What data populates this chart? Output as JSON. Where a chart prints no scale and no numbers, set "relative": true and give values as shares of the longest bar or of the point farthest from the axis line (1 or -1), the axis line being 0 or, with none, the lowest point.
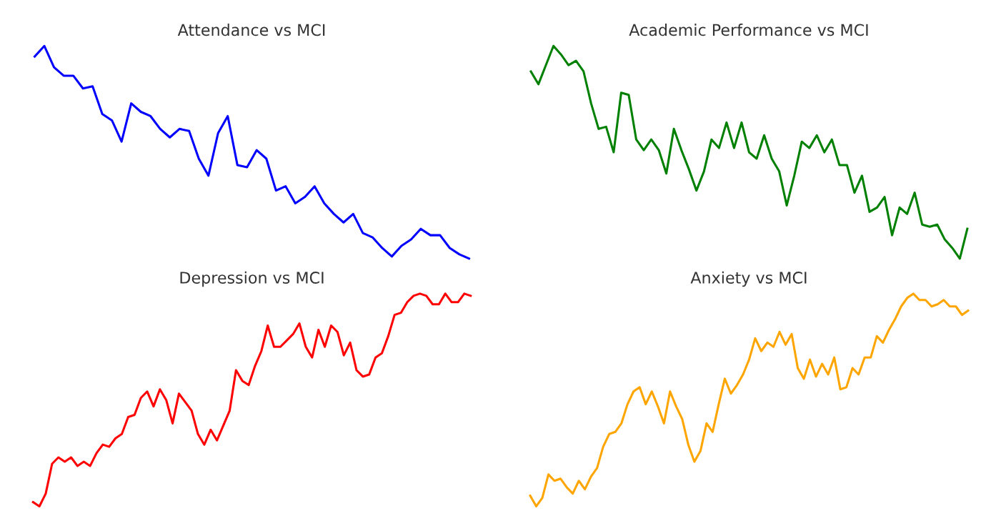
{
  "chart_data": [
    {
      "type": "line",
      "title": "Attendance vs MCI",
      "relative": true,
      "categories": [
        null,
        null,
        null,
        null,
        null,
        null,
        null,
        null,
        null,
        null,
        null,
        null,
        null,
        null,
        null,
        null,
        null,
        null,
        null,
        null,
        null,
        null,
        null,
        null,
        null,
        null,
        null,
        null,
        null,
        null,
        null,
        null,
        null,
        null,
        null,
        null,
        null,
        null,
        null,
        null,
        null,
        null,
        null,
        null,
        null,
        null
      ],
      "series": [
        {
          "color": "#0000ff",
          "values": [
            0.95,
            1.0,
            0.9,
            0.86,
            0.86,
            0.8,
            0.81,
            0.68,
            0.65,
            0.55,
            0.73,
            0.69,
            0.67,
            0.61,
            0.57,
            0.61,
            0.6,
            0.47,
            0.39,
            0.59,
            0.67,
            0.44,
            0.43,
            0.51,
            0.47,
            0.32,
            0.34,
            0.26,
            0.29,
            0.34,
            0.26,
            0.21,
            0.17,
            0.21,
            0.12,
            0.1,
            0.05,
            0.01,
            0.06,
            0.09,
            0.14,
            0.11,
            0.11,
            0.05,
            0.02,
            0.0
          ]
        }
      ]
    },
    {
      "type": "line",
      "title": "Academic Performance vs MCI",
      "relative": true,
      "categories": [
        null,
        null,
        null,
        null,
        null,
        null,
        null,
        null,
        null,
        null,
        null,
        null,
        null,
        null,
        null,
        null,
        null,
        null,
        null,
        null,
        null,
        null,
        null,
        null,
        null,
        null,
        null,
        null,
        null,
        null,
        null,
        null,
        null,
        null,
        null,
        null,
        null,
        null,
        null,
        null,
        null,
        null,
        null,
        null,
        null,
        null,
        null,
        null,
        null,
        null,
        null,
        null,
        null,
        null,
        null,
        null,
        null,
        null,
        null
      ],
      "series": [
        {
          "color": "#008000",
          "values": [
            0.88,
            0.82,
            0.91,
            1.0,
            0.96,
            0.91,
            0.93,
            0.88,
            0.73,
            0.61,
            0.62,
            0.5,
            0.78,
            0.77,
            0.56,
            0.51,
            0.56,
            0.51,
            0.4,
            0.61,
            0.51,
            0.42,
            0.32,
            0.41,
            0.56,
            0.52,
            0.64,
            0.52,
            0.64,
            0.5,
            0.47,
            0.58,
            0.47,
            0.41,
            0.25,
            0.39,
            0.55,
            0.52,
            0.58,
            0.5,
            0.56,
            0.44,
            0.44,
            0.31,
            0.39,
            0.22,
            0.24,
            0.29,
            0.11,
            0.24,
            0.21,
            0.31,
            0.16,
            0.15,
            0.16,
            0.09,
            0.05,
            0.0,
            0.14
          ]
        }
      ]
    },
    {
      "type": "line",
      "title": "Depression vs MCI",
      "relative": true,
      "categories": [
        null,
        null,
        null,
        null,
        null,
        null,
        null,
        null,
        null,
        null,
        null,
        null,
        null,
        null,
        null,
        null,
        null,
        null,
        null,
        null,
        null,
        null,
        null,
        null,
        null,
        null,
        null,
        null,
        null,
        null,
        null,
        null,
        null,
        null,
        null,
        null,
        null,
        null,
        null,
        null,
        null,
        null,
        null,
        null,
        null,
        null,
        null,
        null,
        null,
        null,
        null,
        null,
        null,
        null,
        null,
        null,
        null,
        null,
        null,
        null,
        null,
        null,
        null,
        null,
        null,
        null,
        null,
        null,
        null,
        null
      ],
      "series": [
        {
          "color": "#ff0000",
          "values": [
            0.02,
            0.0,
            0.06,
            0.2,
            0.23,
            0.21,
            0.23,
            0.19,
            0.21,
            0.19,
            0.25,
            0.29,
            0.28,
            0.32,
            0.34,
            0.42,
            0.43,
            0.51,
            0.54,
            0.47,
            0.55,
            0.5,
            0.39,
            0.53,
            0.49,
            0.45,
            0.34,
            0.29,
            0.36,
            0.31,
            0.38,
            0.45,
            0.64,
            0.59,
            0.57,
            0.66,
            0.73,
            0.85,
            0.75,
            0.75,
            0.78,
            0.81,
            0.86,
            0.75,
            0.7,
            0.83,
            0.75,
            0.85,
            0.82,
            0.71,
            0.77,
            0.64,
            0.61,
            0.62,
            0.7,
            0.72,
            0.8,
            0.9,
            0.91,
            0.96,
            0.99,
            1.0,
            0.99,
            0.95,
            0.95,
            1.0,
            0.96,
            0.96,
            1.0,
            0.99
          ]
        }
      ]
    },
    {
      "type": "line",
      "title": "Anxiety vs MCI",
      "relative": true,
      "categories": [
        null,
        null,
        null,
        null,
        null,
        null,
        null,
        null,
        null,
        null,
        null,
        null,
        null,
        null,
        null,
        null,
        null,
        null,
        null,
        null,
        null,
        null,
        null,
        null,
        null,
        null,
        null,
        null,
        null,
        null,
        null,
        null,
        null,
        null,
        null,
        null,
        null,
        null,
        null,
        null,
        null,
        null,
        null,
        null,
        null,
        null,
        null,
        null,
        null,
        null,
        null,
        null,
        null,
        null,
        null,
        null,
        null,
        null,
        null,
        null,
        null,
        null,
        null,
        null,
        null,
        null,
        null,
        null,
        null,
        null,
        null,
        null,
        null
      ],
      "series": [
        {
          "color": "#ffa500",
          "values": [
            0.05,
            0.0,
            0.04,
            0.15,
            0.12,
            0.13,
            0.09,
            0.06,
            0.12,
            0.08,
            0.14,
            0.18,
            0.28,
            0.34,
            0.35,
            0.39,
            0.48,
            0.54,
            0.56,
            0.48,
            0.54,
            0.47,
            0.39,
            0.54,
            0.47,
            0.41,
            0.29,
            0.21,
            0.26,
            0.39,
            0.35,
            0.48,
            0.6,
            0.53,
            0.57,
            0.62,
            0.69,
            0.79,
            0.73,
            0.77,
            0.75,
            0.82,
            0.76,
            0.81,
            0.65,
            0.6,
            0.69,
            0.61,
            0.67,
            0.62,
            0.7,
            0.55,
            0.56,
            0.65,
            0.62,
            0.7,
            0.7,
            0.8,
            0.77,
            0.83,
            0.88,
            0.94,
            0.98,
            1.0,
            0.97,
            0.97,
            0.94,
            0.95,
            0.97,
            0.94,
            0.94,
            0.9,
            0.92
          ]
        }
      ]
    }
  ]
}
